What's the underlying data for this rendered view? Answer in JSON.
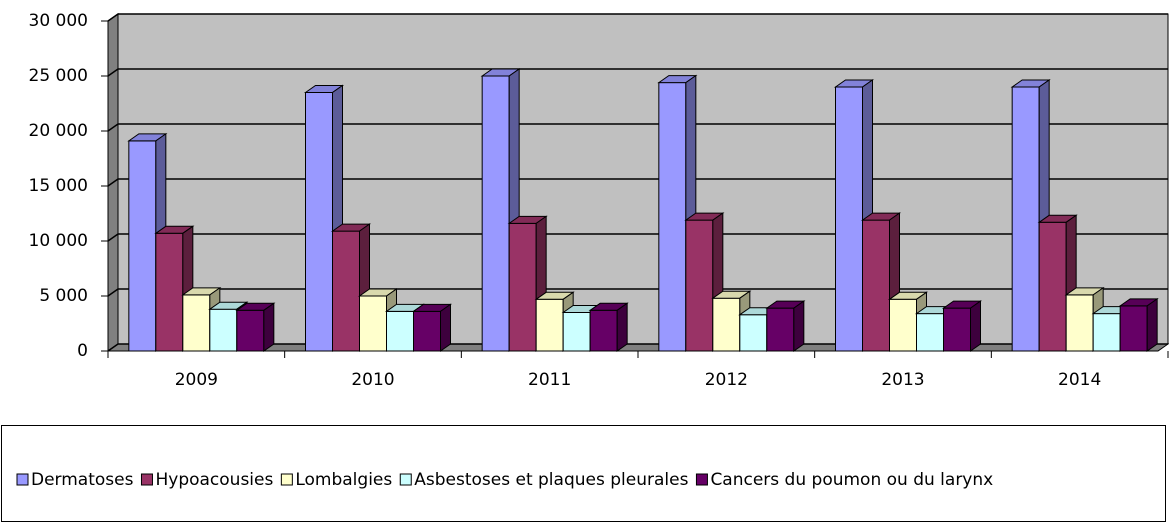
{
  "chart_data": {
    "type": "bar3d",
    "categories": [
      "2009",
      "2010",
      "2011",
      "2012",
      "2013",
      "2014"
    ],
    "series": [
      {
        "name": "Dermatoses",
        "color": "#9999FF",
        "values": [
          19100,
          23500,
          25000,
          24400,
          24000,
          24000
        ]
      },
      {
        "name": "Hypoacousies",
        "color": "#993366",
        "values": [
          10700,
          10900,
          11600,
          11900,
          11900,
          11700
        ]
      },
      {
        "name": "Lombalgies",
        "color": "#FFFFCC",
        "values": [
          5100,
          5000,
          4700,
          4800,
          4700,
          5100
        ]
      },
      {
        "name": "Asbestoses et plaques pleurales",
        "color": "#CCFFFF",
        "values": [
          3800,
          3600,
          3500,
          3300,
          3400,
          3400
        ]
      },
      {
        "name": "Cancers du poumon ou du larynx",
        "color": "#660066",
        "values": [
          3700,
          3600,
          3700,
          3900,
          3900,
          4100
        ]
      }
    ],
    "ylim": [
      0,
      30000
    ],
    "yticks": [
      0,
      {
        "value": 5000,
        "label": "5 000"
      },
      {
        "value": 10000,
        "label": "10 000"
      },
      {
        "value": 15000,
        "label": "15 000"
      },
      {
        "value": 20000,
        "label": "20 000"
      },
      {
        "value": 25000,
        "label": "25 000"
      },
      {
        "value": 30000,
        "label": "30 000"
      }
    ],
    "grid": true,
    "legend": "bottom"
  }
}
